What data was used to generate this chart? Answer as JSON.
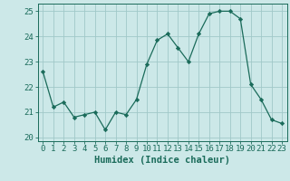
{
  "x": [
    0,
    1,
    2,
    3,
    4,
    5,
    6,
    7,
    8,
    9,
    10,
    11,
    12,
    13,
    14,
    15,
    16,
    17,
    18,
    19,
    20,
    21,
    22,
    23
  ],
  "y": [
    22.6,
    21.2,
    21.4,
    20.8,
    20.9,
    21.0,
    20.3,
    21.0,
    20.9,
    21.5,
    22.9,
    23.85,
    24.1,
    23.55,
    23.0,
    24.1,
    24.9,
    25.0,
    25.0,
    24.7,
    22.1,
    21.5,
    20.7,
    20.55
  ],
  "line_color": "#1a6b5a",
  "marker": "D",
  "marker_size": 2.2,
  "bg_color": "#cce8e8",
  "grid_color": "#a0c8c8",
  "xlabel": "Humidex (Indice chaleur)",
  "xlim": [
    -0.5,
    23.5
  ],
  "ylim": [
    19.85,
    25.3
  ],
  "yticks": [
    20,
    21,
    22,
    23,
    24,
    25
  ],
  "xticks": [
    0,
    1,
    2,
    3,
    4,
    5,
    6,
    7,
    8,
    9,
    10,
    11,
    12,
    13,
    14,
    15,
    16,
    17,
    18,
    19,
    20,
    21,
    22,
    23
  ],
  "tick_color": "#1a6b5a",
  "label_fontsize": 7.5,
  "tick_fontsize": 6.5
}
